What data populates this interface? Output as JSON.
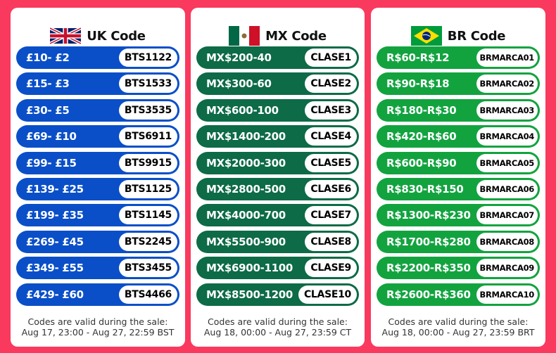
{
  "panels": [
    {
      "id": "uk",
      "title": "UK Code",
      "flag": "uk-flag-icon",
      "color": "#0a4fc8",
      "rows": [
        {
          "amount": "£10- £2",
          "code": "BTS1122"
        },
        {
          "amount": "£15- £3",
          "code": "BTS1533"
        },
        {
          "amount": "£30- £5",
          "code": "BTS3535"
        },
        {
          "amount": "£69- £10",
          "code": "BTS6911"
        },
        {
          "amount": "£99- £15",
          "code": "BTS9915"
        },
        {
          "amount": "£139- £25",
          "code": "BTS1125"
        },
        {
          "amount": "£199- £35",
          "code": "BTS1145"
        },
        {
          "amount": "£269- £45",
          "code": "BTS2245"
        },
        {
          "amount": "£349- £55",
          "code": "BTS3455"
        },
        {
          "amount": "£429- £60",
          "code": "BTS4466"
        }
      ],
      "footer_line1": "Codes are valid during the sale:",
      "footer_line2": "Aug 17, 23:00 - Aug 27, 22:59 BST"
    },
    {
      "id": "mx",
      "title": "MX Code",
      "flag": "mexico-flag-icon",
      "color": "#0d6b47",
      "rows": [
        {
          "amount": "MX$200-40",
          "code": "CLASE1"
        },
        {
          "amount": "MX$300-60",
          "code": "CLASE2"
        },
        {
          "amount": "MX$600-100",
          "code": "CLASE3"
        },
        {
          "amount": "MX$1400-200",
          "code": "CLASE4"
        },
        {
          "amount": "MX$2000-300",
          "code": "CLASE5"
        },
        {
          "amount": "MX$2800-500",
          "code": "CLASE6"
        },
        {
          "amount": "MX$4000-700",
          "code": "CLASE7"
        },
        {
          "amount": "MX$5500-900",
          "code": "CLASE8"
        },
        {
          "amount": "MX$6900-1100",
          "code": "CLASE9"
        },
        {
          "amount": "MX$8500-1200",
          "code": "CLASE10"
        }
      ],
      "footer_line1": "Codes are valid during the sale:",
      "footer_line2": "Aug 18, 00:00 - Aug 27, 23:59 CT"
    },
    {
      "id": "br",
      "title": "BR Code",
      "flag": "brazil-flag-icon",
      "color": "#12a33f",
      "rows": [
        {
          "amount": "R$60-R$12",
          "code": "BRMARCA01"
        },
        {
          "amount": "R$90-R$18",
          "code": "BRMARCA02"
        },
        {
          "amount": "R$180-R$30",
          "code": "BRMARCA03"
        },
        {
          "amount": "R$420-R$60",
          "code": "BRMARCA04"
        },
        {
          "amount": "R$600-R$90",
          "code": "BRMARCA05"
        },
        {
          "amount": "R$830-R$150",
          "code": "BRMARCA06"
        },
        {
          "amount": "R$1300-R$230",
          "code": "BRMARCA07"
        },
        {
          "amount": "R$1700-R$280",
          "code": "BRMARCA08"
        },
        {
          "amount": "R$2200-R$350",
          "code": "BRMARCA09"
        },
        {
          "amount": "R$2600-R$360",
          "code": "BRMARCA10"
        }
      ],
      "footer_line1": "Codes are valid during the sale:",
      "footer_line2": "Aug 18, 00:00 - Aug 27, 23:59 BRT"
    }
  ]
}
